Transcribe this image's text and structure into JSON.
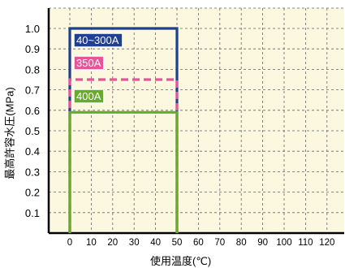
{
  "chart_data": {
    "type": "step-area",
    "xlabel": "使用温度(℃)",
    "ylabel": "最高許容水圧(MPa)",
    "x_ticks": [
      0,
      10,
      20,
      30,
      40,
      50,
      60,
      70,
      80,
      90,
      100,
      110,
      120
    ],
    "y_ticks": [
      0.1,
      0.2,
      0.3,
      0.4,
      0.5,
      0.6,
      0.7,
      0.8,
      0.9,
      1.0
    ],
    "xlim": [
      -10,
      130
    ],
    "ylim": [
      0,
      1.1
    ],
    "grid": true,
    "series": [
      {
        "name": "40~300A",
        "x": [
          0,
          50
        ],
        "y": 1.0,
        "color": "#1f3f8f",
        "line_style": "solid"
      },
      {
        "name": "350A",
        "x": [
          0,
          50
        ],
        "y": 0.75,
        "color": "#e6559a",
        "line_style": "dashed"
      },
      {
        "name": "400A",
        "x": [
          0,
          50
        ],
        "y": 0.59,
        "color": "#6aaa2a",
        "line_style": "solid"
      }
    ]
  },
  "colors": {
    "background": "#ffffff",
    "plot_background": "#fbf8df",
    "grid": "#666666"
  }
}
